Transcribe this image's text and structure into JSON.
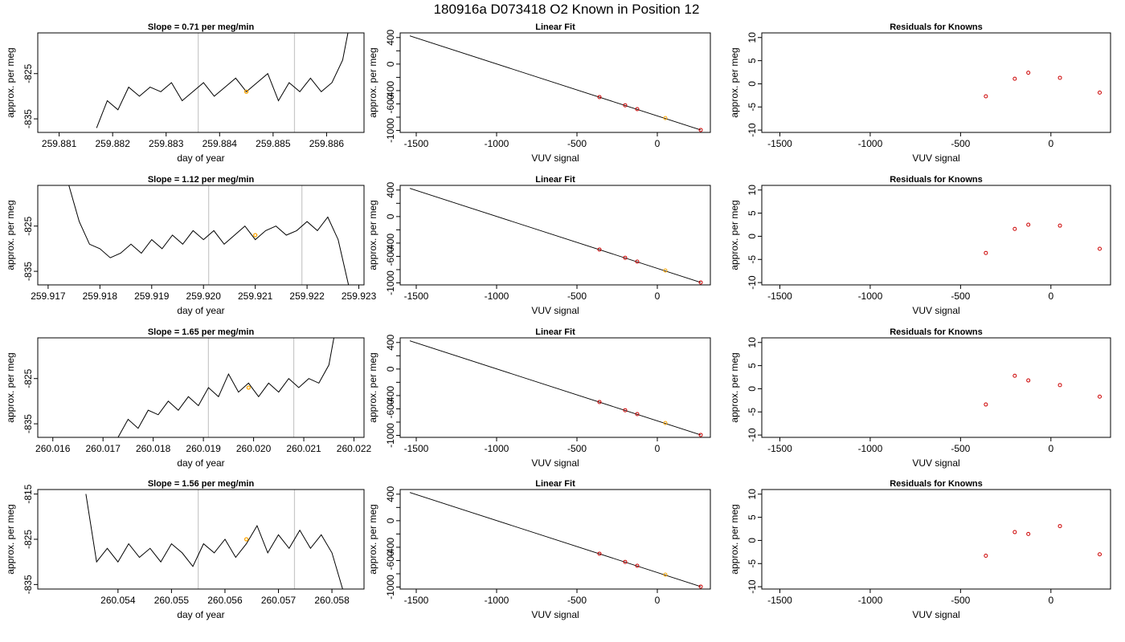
{
  "page_title": "180916a     D073418   O2 Known in Position  12",
  "colors": {
    "trace": "#000000",
    "highlight": "#ffa500",
    "points": "#cc0000",
    "vline": "#c8c8c8",
    "axes": "#000000"
  },
  "chart_data": [
    {
      "type": "line",
      "title": "Slope =  0.71  per meg/min",
      "xlabel": "day of year",
      "ylabel": "approx. per meg",
      "xlim": [
        259.8806,
        259.8867
      ],
      "ylim": [
        -838,
        -816
      ],
      "xticks": [
        "259.881",
        "259.882",
        "259.883",
        "259.884",
        "259.885",
        "259.886"
      ],
      "xtick_values": [
        259.881,
        259.882,
        259.883,
        259.884,
        259.885,
        259.886
      ],
      "yticks": [
        "-835",
        "-825"
      ],
      "ytick_values": [
        -835,
        -825
      ],
      "vlines": [
        259.8836,
        259.8854
      ],
      "highlight": {
        "x": 259.8845,
        "y": -829
      },
      "x": [
        259.8817,
        259.8819,
        259.8821,
        259.8823,
        259.8825,
        259.8827,
        259.8829,
        259.8831,
        259.8833,
        259.8835,
        259.8837,
        259.8839,
        259.8841,
        259.8843,
        259.8845,
        259.8847,
        259.8849,
        259.8851,
        259.8853,
        259.8855,
        259.8857,
        259.8859,
        259.8861,
        259.8863,
        259.8864
      ],
      "y": [
        -837,
        -831,
        -833,
        -828,
        -830,
        -828,
        -829,
        -827,
        -831,
        -829,
        -827,
        -830,
        -828,
        -826,
        -829,
        -827,
        -825,
        -831,
        -827,
        -829,
        -826,
        -829,
        -827,
        -822,
        -816
      ]
    },
    {
      "type": "scatter",
      "title": "Linear Fit",
      "xlabel": "VUV signal",
      "ylabel": "approx. per meg",
      "xlim": [
        -1600,
        330
      ],
      "ylim": [
        -1030,
        470
      ],
      "xticks": [
        "-1500",
        "-1000",
        "-500",
        "0"
      ],
      "xtick_values": [
        -1500,
        -1000,
        -500,
        0
      ],
      "yticks": [
        "-1000",
        "-800",
        "-600",
        "-400",
        "-200",
        "0",
        "200",
        "400"
      ],
      "ytick_values": [
        -1000,
        -800,
        -600,
        -400,
        -200,
        0,
        200,
        400
      ],
      "ytick_labels_shown": [
        "-1000",
        "-600",
        "-400",
        "0",
        "400"
      ],
      "line": {
        "x": [
          -1540,
          270
        ],
        "y": [
          425,
          -993
        ]
      },
      "points": {
        "x": [
          -360,
          -200,
          -125,
          50,
          270
        ],
        "y": [
          -497,
          -621,
          -679,
          -814,
          -993
        ]
      },
      "highlight_index": 3
    },
    {
      "type": "scatter",
      "title": "Residuals for Knowns",
      "xlabel": "VUV signal",
      "ylabel": "approx. per meg",
      "xlim": [
        -1600,
        330
      ],
      "ylim": [
        -10.5,
        11
      ],
      "xticks": [
        "-1500",
        "-1000",
        "-500",
        "0"
      ],
      "xtick_values": [
        -1500,
        -1000,
        -500,
        0
      ],
      "yticks": [
        "-10",
        "-5",
        "0",
        "5",
        "10"
      ],
      "ytick_values": [
        -10,
        -5,
        0,
        5,
        10
      ],
      "points": {
        "x": [
          -360,
          -200,
          -125,
          50,
          270
        ],
        "y": [
          -2.7,
          1.1,
          2.4,
          1.3,
          -1.9
        ]
      }
    },
    {
      "type": "line",
      "title": "Slope =  1.12  per meg/min",
      "xlabel": "day of year",
      "ylabel": "approx. per meg",
      "xlim": [
        259.9168,
        259.9231
      ],
      "ylim": [
        -838,
        -816
      ],
      "xticks": [
        "259.917",
        "259.918",
        "259.919",
        "259.920",
        "259.921",
        "259.922",
        "259.923"
      ],
      "xtick_values": [
        259.917,
        259.918,
        259.919,
        259.92,
        259.921,
        259.922,
        259.923
      ],
      "yticks": [
        "-835",
        "-825"
      ],
      "ytick_values": [
        -835,
        -825
      ],
      "vlines": [
        259.9201,
        259.9219
      ],
      "highlight": {
        "x": 259.921,
        "y": -827
      },
      "x": [
        259.9174,
        259.9176,
        259.9178,
        259.918,
        259.9182,
        259.9184,
        259.9186,
        259.9188,
        259.919,
        259.9192,
        259.9194,
        259.9196,
        259.9198,
        259.92,
        259.9202,
        259.9204,
        259.9206,
        259.9208,
        259.921,
        259.9212,
        259.9214,
        259.9216,
        259.9218,
        259.922,
        259.9222,
        259.9224,
        259.9226,
        259.9228
      ],
      "y": [
        -816,
        -824,
        -829,
        -830,
        -832,
        -831,
        -829,
        -831,
        -828,
        -830,
        -827,
        -829,
        -826,
        -828,
        -826,
        -829,
        -827,
        -825,
        -828,
        -826,
        -825,
        -827,
        -826,
        -824,
        -826,
        -823,
        -828,
        -838
      ]
    },
    {
      "type": "scatter",
      "title": "Linear Fit",
      "xlabel": "VUV signal",
      "ylabel": "approx. per meg",
      "xlim": [
        -1600,
        330
      ],
      "ylim": [
        -1030,
        470
      ],
      "xticks": [
        "-1500",
        "-1000",
        "-500",
        "0"
      ],
      "xtick_values": [
        -1500,
        -1000,
        -500,
        0
      ],
      "yticks": [
        "-1000",
        "-800",
        "-600",
        "-400",
        "-200",
        "0",
        "200",
        "400"
      ],
      "ytick_values": [
        -1000,
        -800,
        -600,
        -400,
        -200,
        0,
        200,
        400
      ],
      "ytick_labels_shown": [
        "-1000",
        "-600",
        "-400",
        "0",
        "400"
      ],
      "line": {
        "x": [
          -1540,
          270
        ],
        "y": [
          425,
          -993
        ]
      },
      "points": {
        "x": [
          -360,
          -200,
          -125,
          50,
          270
        ],
        "y": [
          -497,
          -621,
          -679,
          -814,
          -993
        ]
      },
      "highlight_index": 3
    },
    {
      "type": "scatter",
      "title": "Residuals for Knowns",
      "xlabel": "VUV signal",
      "ylabel": "approx. per meg",
      "xlim": [
        -1600,
        330
      ],
      "ylim": [
        -10.5,
        11
      ],
      "xticks": [
        "-1500",
        "-1000",
        "-500",
        "0"
      ],
      "xtick_values": [
        -1500,
        -1000,
        -500,
        0
      ],
      "yticks": [
        "-10",
        "-5",
        "0",
        "5",
        "10"
      ],
      "ytick_values": [
        -10,
        -5,
        0,
        5,
        10
      ],
      "points": {
        "x": [
          -360,
          -200,
          -125,
          50,
          270
        ],
        "y": [
          -3.6,
          1.6,
          2.5,
          2.3,
          -2.7
        ]
      }
    },
    {
      "type": "line",
      "title": "Slope =  1.65  per meg/min",
      "xlabel": "day of year",
      "ylabel": "approx. per meg",
      "xlim": [
        260.0157,
        260.0222
      ],
      "ylim": [
        -838,
        -816
      ],
      "xticks": [
        "260.016",
        "260.017",
        "260.018",
        "260.019",
        "260.020",
        "260.021",
        "260.022"
      ],
      "xtick_values": [
        260.016,
        260.017,
        260.018,
        260.019,
        260.02,
        260.021,
        260.022
      ],
      "yticks": [
        "-835",
        "-825"
      ],
      "ytick_values": [
        -835,
        -825
      ],
      "vlines": [
        260.0191,
        260.0208
      ],
      "highlight": {
        "x": 260.0199,
        "y": -827
      },
      "x": [
        260.0173,
        260.0175,
        260.0177,
        260.0179,
        260.0181,
        260.0183,
        260.0185,
        260.0187,
        260.0189,
        260.0191,
        260.0193,
        260.0195,
        260.0197,
        260.0199,
        260.0201,
        260.0203,
        260.0205,
        260.0207,
        260.0209,
        260.0211,
        260.0213,
        260.0215,
        260.0216
      ],
      "y": [
        -838,
        -834,
        -836,
        -832,
        -833,
        -830,
        -832,
        -829,
        -831,
        -827,
        -829,
        -824,
        -828,
        -826,
        -829,
        -826,
        -828,
        -825,
        -827,
        -825,
        -826,
        -822,
        -816
      ]
    },
    {
      "type": "scatter",
      "title": "Linear Fit",
      "xlabel": "VUV signal",
      "ylabel": "approx. per meg",
      "xlim": [
        -1600,
        330
      ],
      "ylim": [
        -1030,
        470
      ],
      "xticks": [
        "-1500",
        "-1000",
        "-500",
        "0"
      ],
      "xtick_values": [
        -1500,
        -1000,
        -500,
        0
      ],
      "yticks": [
        "-1000",
        "-800",
        "-600",
        "-400",
        "-200",
        "0",
        "200",
        "400"
      ],
      "ytick_values": [
        -1000,
        -800,
        -600,
        -400,
        -200,
        0,
        200,
        400
      ],
      "ytick_labels_shown": [
        "-1000",
        "-600",
        "-400",
        "0",
        "400"
      ],
      "line": {
        "x": [
          -1540,
          270
        ],
        "y": [
          425,
          -993
        ]
      },
      "points": {
        "x": [
          -360,
          -200,
          -125,
          50,
          270
        ],
        "y": [
          -497,
          -621,
          -679,
          -814,
          -993
        ]
      },
      "highlight_index": 3
    },
    {
      "type": "scatter",
      "title": "Residuals for Knowns",
      "xlabel": "VUV signal",
      "ylabel": "approx. per meg",
      "xlim": [
        -1600,
        330
      ],
      "ylim": [
        -10.5,
        11
      ],
      "xticks": [
        "-1500",
        "-1000",
        "-500",
        "0"
      ],
      "xtick_values": [
        -1500,
        -1000,
        -500,
        0
      ],
      "yticks": [
        "-10",
        "-5",
        "0",
        "5",
        "10"
      ],
      "ytick_values": [
        -10,
        -5,
        0,
        5,
        10
      ],
      "points": {
        "x": [
          -360,
          -200,
          -125,
          50,
          270
        ],
        "y": [
          -3.4,
          2.8,
          1.8,
          0.8,
          -1.7
        ]
      }
    },
    {
      "type": "line",
      "title": "Slope =  1.56  per meg/min",
      "xlabel": "day of year",
      "ylabel": "approx. per meg",
      "xlim": [
        260.0525,
        260.0586
      ],
      "ylim": [
        -836,
        -814
      ],
      "xticks": [
        "260.054",
        "260.055",
        "260.056",
        "260.057",
        "260.058"
      ],
      "xtick_values": [
        260.054,
        260.055,
        260.056,
        260.057,
        260.058
      ],
      "yticks": [
        "-835",
        "-825",
        "-815"
      ],
      "ytick_values": [
        -835,
        -825,
        -815
      ],
      "vlines": [
        260.0555,
        260.0573
      ],
      "highlight": {
        "x": 260.0564,
        "y": -825
      },
      "x": [
        260.0534,
        260.0536,
        260.0538,
        260.054,
        260.0542,
        260.0544,
        260.0546,
        260.0548,
        260.055,
        260.0552,
        260.0554,
        260.0556,
        260.0558,
        260.056,
        260.0562,
        260.0564,
        260.0566,
        260.0568,
        260.057,
        260.0572,
        260.0574,
        260.0576,
        260.0578,
        260.058,
        260.0582
      ],
      "y": [
        -815,
        -830,
        -827,
        -830,
        -826,
        -829,
        -827,
        -830,
        -826,
        -828,
        -831,
        -826,
        -828,
        -825,
        -829,
        -826,
        -822,
        -828,
        -824,
        -827,
        -823,
        -827,
        -824,
        -828,
        -836
      ]
    },
    {
      "type": "scatter",
      "title": "Linear Fit",
      "xlabel": "VUV signal",
      "ylabel": "approx. per meg",
      "xlim": [
        -1600,
        330
      ],
      "ylim": [
        -1030,
        470
      ],
      "xticks": [
        "-1500",
        "-1000",
        "-500",
        "0"
      ],
      "xtick_values": [
        -1500,
        -1000,
        -500,
        0
      ],
      "yticks": [
        "-1000",
        "-800",
        "-600",
        "-400",
        "-200",
        "0",
        "200",
        "400"
      ],
      "ytick_values": [
        -1000,
        -800,
        -600,
        -400,
        -200,
        0,
        200,
        400
      ],
      "ytick_labels_shown": [
        "-1000",
        "-600",
        "-400",
        "0",
        "400"
      ],
      "line": {
        "x": [
          -1540,
          270
        ],
        "y": [
          425,
          -993
        ]
      },
      "points": {
        "x": [
          -360,
          -200,
          -125,
          50,
          270
        ],
        "y": [
          -497,
          -621,
          -679,
          -814,
          -993
        ]
      },
      "highlight_index": 3
    },
    {
      "type": "scatter",
      "title": "Residuals for Knowns",
      "xlabel": "VUV signal",
      "ylabel": "approx. per meg",
      "xlim": [
        -1600,
        330
      ],
      "ylim": [
        -10.5,
        11
      ],
      "xticks": [
        "-1500",
        "-1000",
        "-500",
        "0"
      ],
      "xtick_values": [
        -1500,
        -1000,
        -500,
        0
      ],
      "yticks": [
        "-10",
        "-5",
        "0",
        "5",
        "10"
      ],
      "ytick_values": [
        -10,
        -5,
        0,
        5,
        10
      ],
      "points": {
        "x": [
          -360,
          -200,
          -125,
          50,
          270
        ],
        "y": [
          -3.3,
          1.8,
          1.4,
          3.1,
          -3.0
        ]
      }
    }
  ]
}
